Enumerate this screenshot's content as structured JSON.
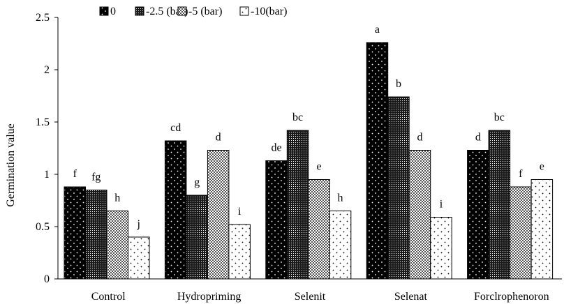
{
  "chart_data": {
    "type": "bar",
    "title": "",
    "xlabel": "",
    "ylabel": "Germination value",
    "ylim": [
      0,
      2.5
    ],
    "yticks": [
      "0",
      "0.5",
      "1",
      "1.5",
      "2",
      "2.5"
    ],
    "grid": false,
    "legend_position": "top",
    "categories": [
      "Control",
      "Hydropriming",
      "Selenit",
      "Selenat",
      "Forclrophenoron"
    ],
    "series": [
      {
        "name": "0",
        "pattern": "black-dots",
        "values": [
          0.88,
          1.32,
          1.13,
          2.26,
          1.23
        ],
        "letters": [
          "f",
          "cd",
          "de",
          "a",
          "d"
        ]
      },
      {
        "name": "-2.5 (bar)",
        "pattern": "dark-dense-dots",
        "values": [
          0.85,
          0.8,
          1.42,
          1.74,
          1.42
        ],
        "letters": [
          "fg",
          "g",
          "bc",
          "b",
          "bc"
        ]
      },
      {
        "name": "-5 (bar)",
        "pattern": "checker",
        "values": [
          0.65,
          1.23,
          0.95,
          1.23,
          0.88
        ],
        "letters": [
          "h",
          "d",
          "e",
          "d",
          "f"
        ]
      },
      {
        "name": "-10(bar)",
        "pattern": "white-dots",
        "values": [
          0.4,
          0.52,
          0.65,
          0.59,
          0.95
        ],
        "letters": [
          "j",
          "i",
          "h",
          "i",
          "e"
        ]
      }
    ]
  }
}
